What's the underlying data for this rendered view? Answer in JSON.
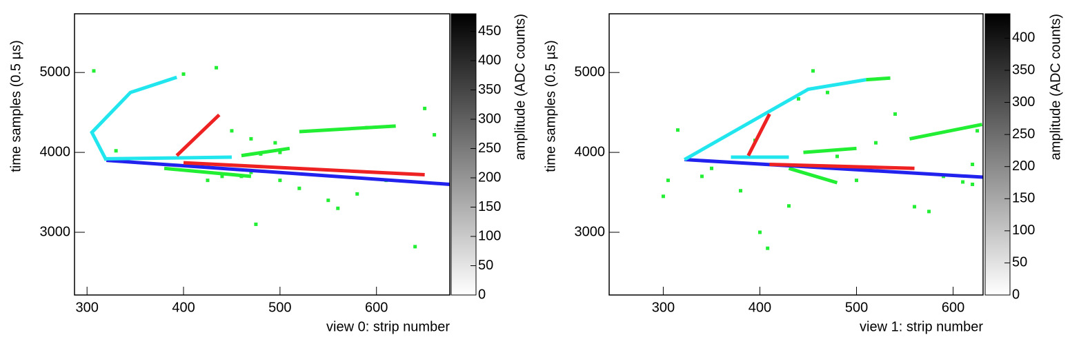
{
  "chart_data": [
    {
      "type": "scatter",
      "xlabel": "view 0: strip number",
      "ylabel": "time samples (0.5 µs)",
      "zlabel": "amplitude (ADC counts)",
      "xlim": [
        287,
        676
      ],
      "ylim": [
        2215,
        5735
      ],
      "xticks": [
        300,
        400,
        500,
        600
      ],
      "yticks": [
        3000,
        4000,
        5000
      ],
      "zlim": [
        0,
        480
      ],
      "zticks": [
        0,
        50,
        100,
        150,
        200,
        250,
        300,
        350,
        400,
        450
      ],
      "series": [
        {
          "line": true,
          "color": "#22ee33",
          "x": [
            460,
            510
          ],
          "values": [
            3960,
            4050
          ]
        },
        {
          "line": true,
          "color": "#22ee33",
          "x": [
            520,
            620
          ],
          "values": [
            4260,
            4330
          ]
        },
        {
          "line": true,
          "color": "#22ee33",
          "x": [
            380,
            470
          ],
          "values": [
            3800,
            3700
          ]
        },
        {
          "line": false,
          "color": "#22ee33",
          "x": [
            307,
            434,
            400,
            450,
            470,
            495,
            500,
            480,
            650,
            660,
            470,
            440,
            500,
            550,
            560,
            475,
            580,
            640,
            425,
            610,
            520,
            330,
            460,
            590
          ],
          "values": [
            5020,
            5060,
            4980,
            4270,
            4170,
            4120,
            4000,
            3980,
            4550,
            4220,
            3750,
            3700,
            3650,
            3400,
            3300,
            3100,
            3480,
            2820,
            3650,
            3650,
            3550,
            4020,
            3700,
            4310
          ]
        },
        {
          "line": true,
          "color": "#2222ee",
          "x": [
            320,
            676
          ],
          "values": [
            3900,
            3600
          ]
        },
        {
          "line": true,
          "color": "#ee2222",
          "x": [
            400,
            650
          ],
          "values": [
            3870,
            3720
          ]
        },
        {
          "line": true,
          "color": "#22e6ee",
          "x": [
            320,
            450
          ],
          "values": [
            3920,
            3940
          ]
        },
        {
          "line": true,
          "color": "#22e6ee",
          "x": [
            393,
            345,
            305,
            320
          ],
          "values": [
            4940,
            4750,
            4250,
            3900
          ]
        },
        {
          "line": true,
          "color": "#ee2222",
          "x": [
            393,
            437
          ],
          "values": [
            3960,
            4470
          ]
        }
      ]
    },
    {
      "type": "scatter",
      "xlabel": "view 1: strip number",
      "ylabel": "time samples (0.5 µs)",
      "zlabel": "amplitude (ADC counts)",
      "xlim": [
        244,
        631
      ],
      "ylim": [
        2215,
        5735
      ],
      "xticks": [
        300,
        400,
        500,
        600
      ],
      "yticks": [
        3000,
        4000,
        5000
      ],
      "zlim": [
        0,
        438
      ],
      "zticks": [
        0,
        50,
        100,
        150,
        200,
        250,
        300,
        350,
        400
      ],
      "series": [
        {
          "line": true,
          "color": "#22ee33",
          "x": [
            445,
            500
          ],
          "values": [
            4000,
            4050
          ]
        },
        {
          "line": true,
          "color": "#22ee33",
          "x": [
            555,
            630
          ],
          "values": [
            4170,
            4350
          ]
        },
        {
          "line": true,
          "color": "#22ee33",
          "x": [
            430,
            480
          ],
          "values": [
            3800,
            3620
          ]
        },
        {
          "line": false,
          "color": "#22ee33",
          "x": [
            300,
            305,
            315,
            395,
            455,
            470,
            440,
            480,
            520,
            540,
            500,
            560,
            575,
            610,
            620,
            400,
            408,
            430,
            340,
            350,
            380,
            625,
            590,
            620
          ],
          "values": [
            3450,
            3650,
            4280,
            4150,
            5020,
            4750,
            4670,
            3950,
            4120,
            4480,
            3650,
            3320,
            3260,
            3630,
            3600,
            3000,
            2800,
            3330,
            3700,
            3800,
            3520,
            4270,
            3700,
            3850
          ]
        },
        {
          "line": true,
          "color": "#2222ee",
          "x": [
            322,
            631
          ],
          "values": [
            3910,
            3690
          ]
        },
        {
          "line": true,
          "color": "#ee2222",
          "x": [
            410,
            560
          ],
          "values": [
            3850,
            3800
          ]
        },
        {
          "line": true,
          "color": "#22e6ee",
          "x": [
            370,
            430
          ],
          "values": [
            3940,
            3940
          ]
        },
        {
          "line": true,
          "color": "#22e6ee",
          "x": [
            322,
            450,
            510
          ],
          "values": [
            3910,
            4790,
            4910
          ]
        },
        {
          "line": true,
          "color": "#22ee33",
          "x": [
            510,
            535
          ],
          "values": [
            4910,
            4930
          ]
        },
        {
          "line": true,
          "color": "#ee2222",
          "x": [
            388,
            410
          ],
          "values": [
            3960,
            4480
          ]
        }
      ]
    }
  ]
}
